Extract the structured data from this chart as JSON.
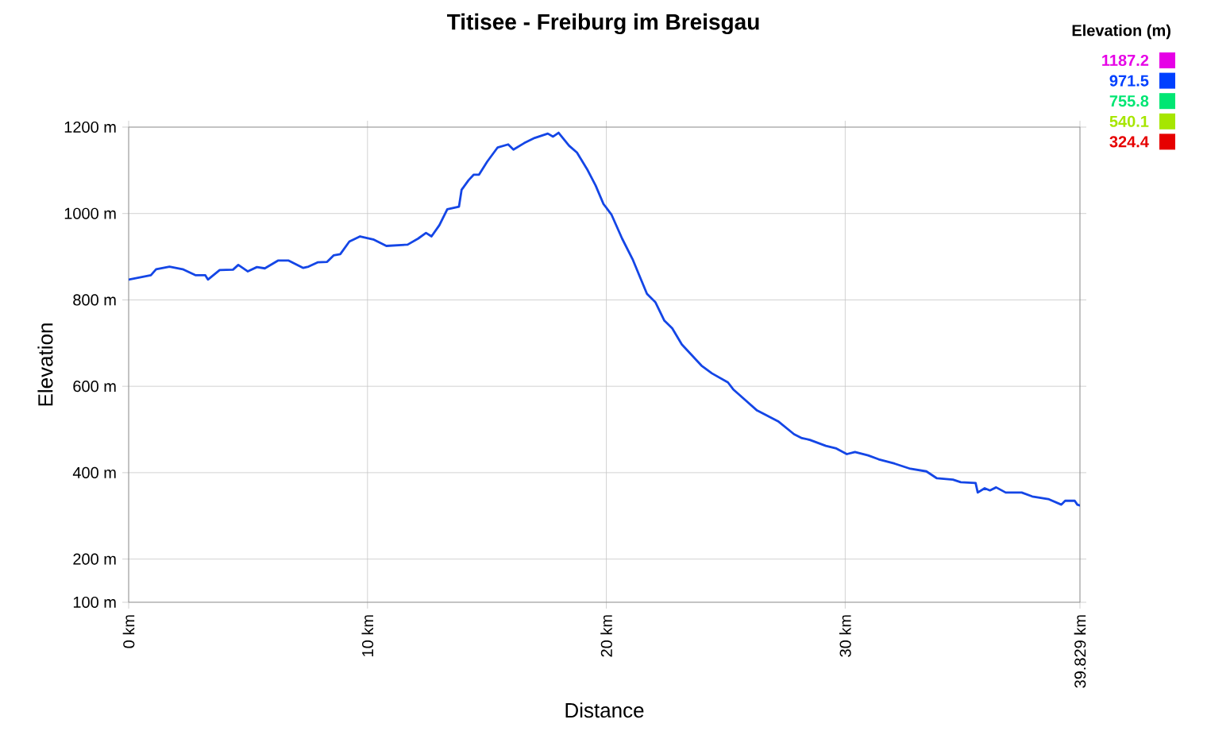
{
  "chart_data": {
    "type": "line",
    "title": "Titisee - Freiburg im Breisgau",
    "xlabel": "Distance",
    "ylabel": "Elevation",
    "x": [
      0,
      0.93,
      1.15,
      1.71,
      2.26,
      2.81,
      3.21,
      3.32,
      3.81,
      4.37,
      4.59,
      4.99,
      5.37,
      5.7,
      6.25,
      6.7,
      7.31,
      7.53,
      7.91,
      8.31,
      8.58,
      8.86,
      9.24,
      9.69,
      10.24,
      10.79,
      11.68,
      12.12,
      12.45,
      12.68,
      13.01,
      13.34,
      13.83,
      13.94,
      14.23,
      14.45,
      14.67,
      15.01,
      15.45,
      15.89,
      16.11,
      16.56,
      17.0,
      17.55,
      17.77,
      18.0,
      18.44,
      18.77,
      19.22,
      19.55,
      19.88,
      20.21,
      20.66,
      21.1,
      21.43,
      21.7,
      22.05,
      22.43,
      22.76,
      23.16,
      23.98,
      24.42,
      25.09,
      25.31,
      26.31,
      27.19,
      27.86,
      28.19,
      28.52,
      29.19,
      29.63,
      30.07,
      30.41,
      30.96,
      31.4,
      32.07,
      32.73,
      33.4,
      33.84,
      34.51,
      34.84,
      35.46,
      35.55,
      35.84,
      36.06,
      36.32,
      36.72,
      37.39,
      37.83,
      38.5,
      39.05,
      39.21,
      39.61,
      39.72,
      39.829
    ],
    "values": [
      847,
      857,
      871,
      877,
      871,
      857,
      857,
      847,
      869,
      870,
      881,
      866,
      876,
      873,
      891,
      891,
      874,
      877,
      887,
      888,
      903,
      906,
      935,
      947,
      940,
      925,
      928,
      942,
      955,
      947,
      973,
      1010,
      1016,
      1055,
      1077,
      1090,
      1090,
      1120,
      1153,
      1160,
      1148,
      1163,
      1175,
      1185,
      1178,
      1187,
      1157,
      1141,
      1100,
      1065,
      1022,
      998,
      942,
      894,
      850,
      814,
      795,
      752,
      734,
      697,
      648,
      630,
      609,
      593,
      544,
      519,
      489,
      480,
      476,
      462,
      456,
      443,
      448,
      440,
      431,
      421,
      409,
      403,
      387,
      384,
      378,
      376,
      354,
      364,
      359,
      366,
      354,
      354,
      345,
      339,
      326,
      335,
      335,
      326,
      324
    ],
    "xlim": [
      0,
      39.829
    ],
    "ylim": [
      100,
      1200
    ],
    "xticks": [
      {
        "value": 0,
        "label": "0 km"
      },
      {
        "value": 10,
        "label": "10 km"
      },
      {
        "value": 20,
        "label": "20 km"
      },
      {
        "value": 30,
        "label": "30 km"
      },
      {
        "value": 39.829,
        "label": "39.829 km"
      }
    ],
    "yticks": [
      {
        "value": 100,
        "label": "100 m"
      },
      {
        "value": 200,
        "label": "200 m"
      },
      {
        "value": 400,
        "label": "400 m"
      },
      {
        "value": 600,
        "label": "600 m"
      },
      {
        "value": 800,
        "label": "800 m"
      },
      {
        "value": 1000,
        "label": "1000 m"
      },
      {
        "value": 1200,
        "label": "1200 m"
      }
    ],
    "grid": true,
    "color": "#1446e6",
    "clabel": "Elevation (m)",
    "clim": [
      324.4,
      1187.2
    ],
    "cticks": [
      1187.2,
      971.5,
      755.8,
      540.1,
      324.4
    ]
  }
}
